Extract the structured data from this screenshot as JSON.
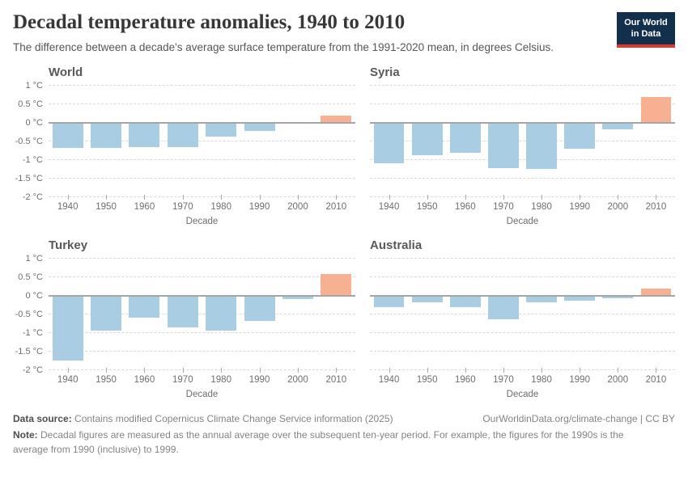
{
  "header": {
    "title": "Decadal temperature anomalies, 1940 to 2010",
    "subtitle": "The difference between a decade's average surface temperature from the 1991-2020 mean, in degrees Celsius.",
    "logo": {
      "line1": "Our World",
      "line2": "in Data",
      "bg_color": "#12304c",
      "accent_color": "#dc3a2b"
    }
  },
  "chart_data": {
    "type": "bar",
    "categories": [
      "1940",
      "1950",
      "1960",
      "1970",
      "1980",
      "1990",
      "2000",
      "2010"
    ],
    "axis": {
      "xlabel": "Decade",
      "ymin": -2,
      "ymax": 1,
      "grid": "dashed",
      "yticks": [
        {
          "v": 1,
          "label": "1 °C"
        },
        {
          "v": 0.5,
          "label": "0.5 °C"
        },
        {
          "v": 0,
          "label": "0 °C"
        },
        {
          "v": -0.5,
          "label": "-0.5 °C"
        },
        {
          "v": -1,
          "label": "-1 °C"
        },
        {
          "v": -1.5,
          "label": "-1.5 °C"
        },
        {
          "v": -2,
          "label": "-2 °C"
        }
      ]
    },
    "colors": {
      "positive_bar": "#f7b091",
      "negative_bar": "#a9cde3",
      "zero_line": "#a5a5a5"
    },
    "panels": [
      {
        "title": "World",
        "values": [
          -0.67,
          -0.69,
          -0.65,
          -0.65,
          -0.37,
          -0.22,
          -0.03,
          0.19
        ]
      },
      {
        "title": "Syria",
        "values": [
          -1.1,
          -0.87,
          -0.82,
          -1.22,
          -1.25,
          -0.71,
          -0.17,
          0.69
        ]
      },
      {
        "title": "Turkey",
        "values": [
          -1.75,
          -0.93,
          -0.6,
          -0.85,
          -0.95,
          -0.69,
          -0.09,
          0.58
        ]
      },
      {
        "title": "Australia",
        "values": [
          -0.31,
          -0.19,
          -0.32,
          -0.63,
          -0.19,
          -0.14,
          -0.08,
          0.19
        ]
      }
    ]
  },
  "footer": {
    "data_source_label": "Data source:",
    "data_source_text": " Contains modified Copernicus Climate Change Service information (2025)",
    "link_text": "OurWorldinData.org/climate-change | CC BY",
    "note_label": "Note:",
    "note_text": " Decadal figures are measured as the annual average over the subsequent ten-year period. For example, the figures for the 1990s is the average from 1990 (inclusive) to 1999."
  }
}
